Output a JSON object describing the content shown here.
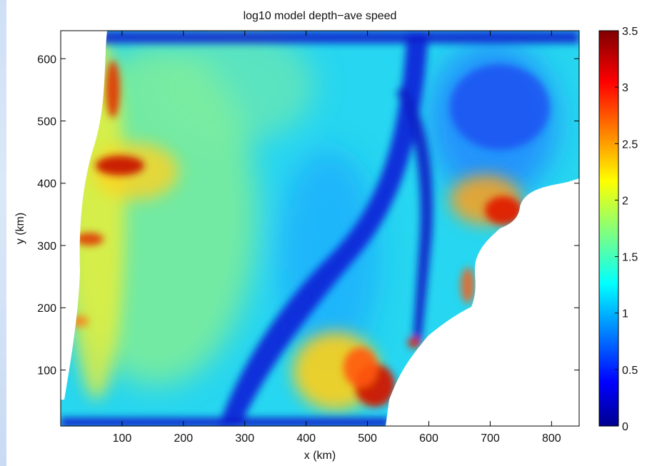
{
  "chart_data": {
    "type": "heatmap",
    "title": "log10 model depth−ave speed",
    "xlabel": "x (km)",
    "ylabel": "y (km)",
    "xlim": [
      0,
      845
    ],
    "ylim": [
      10,
      645
    ],
    "xticks": [
      100,
      200,
      300,
      400,
      500,
      600,
      700,
      800
    ],
    "yticks": [
      100,
      200,
      300,
      400,
      500,
      600
    ],
    "colorbar": {
      "colormap": "jet",
      "range": [
        0,
        3.5
      ],
      "ticks": [
        "0",
        "0.5",
        "1",
        "1.5",
        "2",
        "2.5",
        "3",
        "3.5"
      ],
      "tick_values": [
        0,
        0.5,
        1,
        1.5,
        2,
        2.5,
        3,
        3.5
      ]
    },
    "features": [
      {
        "description": "low-speed channel",
        "from_xy_km": [
          275,
          10
        ],
        "to_xy_km": [
          560,
          645
        ],
        "value": 0.2
      },
      {
        "description": "high-speed outlet",
        "xy_km": [
          520,
          60
        ],
        "value": 3.3
      },
      {
        "description": "high-speed outlet",
        "xy_km": [
          740,
          345
        ],
        "value": 3.2
      },
      {
        "description": "high-speed outlet",
        "xy_km": [
          80,
          435
        ],
        "value": 3.2
      },
      {
        "description": "high-speed outlet",
        "xy_km": [
          85,
          560
        ],
        "value": 3.0
      },
      {
        "description": "no-data region (blank)",
        "region": "east coast",
        "value": null
      }
    ],
    "grid": false,
    "legend": "none"
  }
}
